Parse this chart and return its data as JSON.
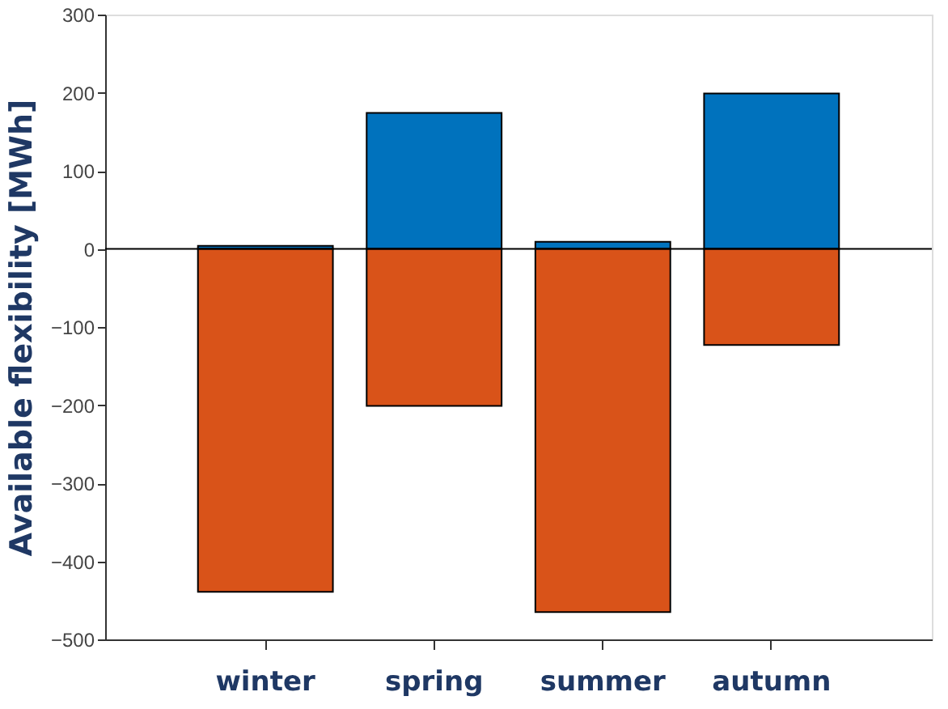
{
  "chart_data": {
    "type": "bar",
    "ylabel": "Available flexibility [MWh]",
    "categories": [
      "winter",
      "spring",
      "summer",
      "autumn"
    ],
    "stacked": true,
    "series": [
      {
        "color": "#0072bd",
        "values": [
          4,
          174,
          9,
          199
        ]
      },
      {
        "color": "#d95319",
        "values": [
          -439,
          -201,
          -465,
          -123
        ]
      }
    ],
    "ylim": [
      -500,
      300
    ],
    "yticks": [
      -500,
      -400,
      -300,
      -200,
      -100,
      0,
      100,
      200,
      300
    ],
    "ref_lines": [
      {
        "axis": "y",
        "value": 0,
        "color": "#000000"
      }
    ],
    "grid": false
  }
}
